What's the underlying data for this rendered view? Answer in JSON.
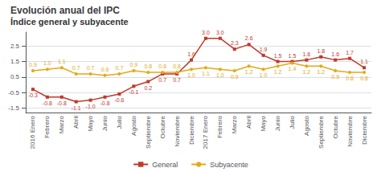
{
  "chart_data": {
    "type": "line",
    "title": "Evolución anual del IPC",
    "subtitle": "Índice general y subyacente",
    "categories": [
      "2016 Enero",
      "Febrero",
      "Marzo",
      "Abril",
      "Mayo",
      "Junio",
      "Julio",
      "Agosto",
      "Septiembre",
      "Octubre",
      "Noviembre",
      "Diciembre",
      "2017 Enero",
      "Febrero",
      "Marzo",
      "Abril",
      "Mayo",
      "Junio",
      "Julio",
      "Agosto",
      "Septiembre",
      "Octubre",
      "Noviembre",
      "Diciembre"
    ],
    "series": [
      {
        "name": "General",
        "color": "#c0392b",
        "marker": "square",
        "values": [
          -0.3,
          -0.8,
          -0.8,
          -1.1,
          -1.0,
          -0.8,
          -0.6,
          -0.1,
          0.2,
          0.7,
          0.7,
          1.6,
          3.0,
          3.0,
          2.3,
          2.6,
          1.9,
          1.5,
          1.5,
          1.6,
          1.8,
          1.6,
          1.7,
          1.1
        ],
        "value_labels": [
          "-0.3",
          "-0.8",
          "-0.8",
          "-1.1",
          "-1.0",
          "-0.8",
          "-0.6",
          "-0.1",
          "0.2",
          "0.7",
          "0.7",
          "1.6",
          "3.0",
          "3.0",
          "2.3",
          "2.6",
          "1.9",
          "1.5",
          "1.5",
          "1.6",
          "1.8",
          "1.6",
          "1.7",
          "1.1"
        ]
      },
      {
        "name": "Subyacente",
        "color": "#e6a817",
        "marker": "circle",
        "values": [
          0.9,
          1.0,
          1.1,
          0.7,
          0.7,
          0.6,
          0.7,
          0.9,
          0.8,
          0.8,
          0.8,
          1.0,
          1.1,
          1.0,
          0.9,
          1.2,
          1.0,
          1.2,
          1.4,
          1.2,
          1.2,
          0.9,
          0.8,
          0.8
        ],
        "value_labels": [
          "0.9",
          "1.0",
          "1.1",
          "0.7",
          "0.7",
          "0.6",
          "0.7",
          "0.9",
          "0.8",
          "0.8",
          "0.8",
          "1.0",
          "1.1",
          "1.0",
          "0.9",
          "1.2",
          "1.0",
          "1.2",
          "1.4",
          "1.2",
          "1.2",
          "0.9",
          "0.8",
          "0.8"
        ]
      }
    ],
    "ylim": [
      -1.8,
      3.4
    ],
    "yticks": [
      -1.5,
      -0.5,
      0.5,
      1.5,
      2.5
    ],
    "grid": true,
    "legend": "bottom",
    "data_labels": true
  }
}
